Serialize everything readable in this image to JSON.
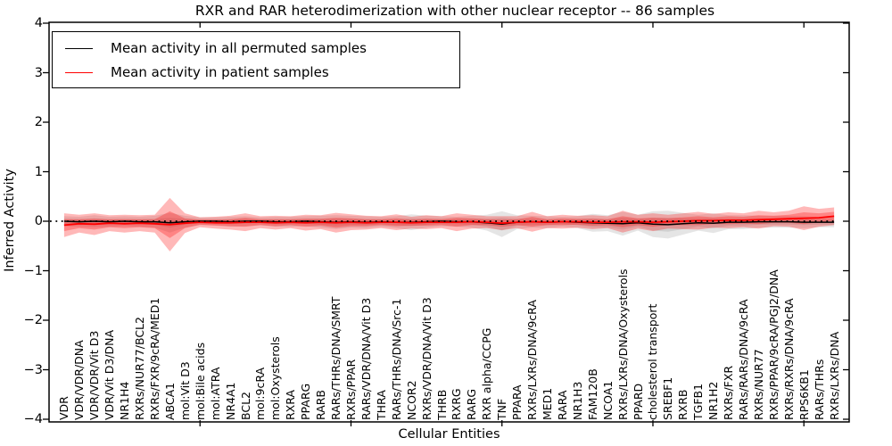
{
  "chart_data": {
    "type": "line",
    "title": "RXR and RAR heterodimerization with other nuclear receptor -- 86 samples",
    "xlabel": "Cellular Entities",
    "ylabel": "Inferred Activity",
    "ylim": [
      -4,
      4
    ],
    "xlim": [
      0,
      53
    ],
    "grid": false,
    "legend_position": "upper left",
    "x_major_ticks": [
      10,
      20,
      30,
      40,
      50
    ],
    "y_tick_values": [
      4,
      3,
      2,
      1,
      0,
      -1,
      -2,
      -3,
      -4
    ],
    "y_tick_labels": [
      "4",
      "3",
      "2",
      "1",
      "0",
      "−1",
      "−2",
      "−3",
      "−4"
    ],
    "reference_line": {
      "y": 0,
      "style": "dotted",
      "color": "#000000"
    },
    "categories": [
      "VDR",
      "VDR/VDR/DNA",
      "VDR/VDR/Vit D3",
      "VDR/Vit D3/DNA",
      "NR1H4",
      "RXRs/NUR77/BCL2",
      "RXRs/FXR/9cRA/MED1",
      "ABCA1",
      "mol:Vit D3",
      "mol:Bile acids",
      "mol:ATRA",
      "NR4A1",
      "BCL2",
      "mol:9cRA",
      "mol:Oxysterols",
      "RXRA",
      "PPARG",
      "RARB",
      "RARs/THRs/DNA/SMRT",
      "RXRs/PPAR",
      "RARs/VDR/DNA/Vit D3",
      "THRA",
      "RARs/THRs/DNA/Src-1",
      "NCOR2",
      "RXRs/VDR/DNA/Vit D3",
      "THRB",
      "RXRG",
      "RARG",
      "RXR alpha/CCPG",
      "TNF",
      "PPARA",
      "RXRs/LXRs/DNA/9cRA",
      "MED1",
      "RARA",
      "NR1H3",
      "FAM120B",
      "NCOA1",
      "RXRs/LXRs/DNA/Oxysterols",
      "PPARD",
      "cholesterol transport",
      "SREBF1",
      "RXRB",
      "TGFB1",
      "NR1H2",
      "RXRs/FXR",
      "RARs/RARs/DNA/9cRA",
      "RXRs/NUR77",
      "RXRs/PPAR/9cRA/PGJ2/DNA",
      "RXRs/RXRs/DNA/9cRA",
      "RPS6KB1",
      "RARs/THRs",
      "RXRs/LXRs/DNA"
    ],
    "series": [
      {
        "name": "Mean activity in all permuted samples",
        "color": "#000000",
        "band_color": "#888888",
        "values": [
          0,
          -0.01,
          0,
          -0.01,
          0,
          -0.01,
          -0.01,
          -0.03,
          -0.01,
          0,
          0,
          -0.01,
          0,
          0,
          -0.01,
          -0.01,
          0,
          -0.01,
          -0.02,
          -0.01,
          -0.02,
          -0.01,
          -0.02,
          -0.02,
          -0.01,
          0,
          -0.01,
          -0.01,
          -0.03,
          -0.06,
          -0.02,
          -0.01,
          -0.02,
          -0.01,
          -0.02,
          -0.03,
          -0.04,
          -0.05,
          -0.03,
          -0.06,
          -0.07,
          -0.05,
          -0.03,
          -0.04,
          -0.02,
          -0.02,
          -0.01,
          -0.01,
          -0.01,
          -0.02,
          -0.02,
          -0.02
        ],
        "sd": [
          0.05,
          0.05,
          0.06,
          0.05,
          0.05,
          0.05,
          0.06,
          0.1,
          0.06,
          0.04,
          0.04,
          0.05,
          0.05,
          0.04,
          0.05,
          0.05,
          0.05,
          0.06,
          0.07,
          0.06,
          0.06,
          0.05,
          0.06,
          0.08,
          0.06,
          0.05,
          0.05,
          0.06,
          0.08,
          0.13,
          0.07,
          0.06,
          0.06,
          0.05,
          0.06,
          0.09,
          0.08,
          0.12,
          0.08,
          0.13,
          0.14,
          0.11,
          0.08,
          0.1,
          0.07,
          0.07,
          0.06,
          0.06,
          0.06,
          0.06,
          0.05,
          0.05
        ]
      },
      {
        "name": "Mean activity in patient samples",
        "color": "#ff0000",
        "band_color": "#ff0000",
        "values": [
          -0.08,
          -0.05,
          -0.06,
          -0.04,
          -0.05,
          -0.04,
          -0.05,
          -0.07,
          -0.04,
          -0.02,
          -0.03,
          -0.03,
          -0.02,
          -0.02,
          -0.03,
          -0.02,
          -0.03,
          -0.02,
          -0.03,
          -0.02,
          -0.03,
          -0.02,
          -0.02,
          -0.03,
          -0.02,
          -0.02,
          -0.02,
          -0.01,
          -0.02,
          -0.04,
          -0.02,
          -0.01,
          -0.02,
          -0.01,
          -0.01,
          -0.02,
          -0.02,
          -0.01,
          -0.01,
          -0.02,
          -0.01,
          0,
          0.01,
          0.01,
          0.02,
          0.02,
          0.03,
          0.04,
          0.05,
          0.06,
          0.07,
          0.1
        ],
        "sd": [
          0.12,
          0.09,
          0.11,
          0.08,
          0.09,
          0.08,
          0.09,
          0.27,
          0.1,
          0.05,
          0.06,
          0.07,
          0.09,
          0.06,
          0.07,
          0.06,
          0.08,
          0.07,
          0.1,
          0.08,
          0.07,
          0.06,
          0.08,
          0.06,
          0.07,
          0.06,
          0.09,
          0.07,
          0.06,
          0.07,
          0.06,
          0.1,
          0.06,
          0.07,
          0.06,
          0.07,
          0.06,
          0.11,
          0.07,
          0.09,
          0.07,
          0.08,
          0.09,
          0.07,
          0.08,
          0.07,
          0.09,
          0.07,
          0.08,
          0.12,
          0.09,
          0.09
        ]
      }
    ]
  }
}
